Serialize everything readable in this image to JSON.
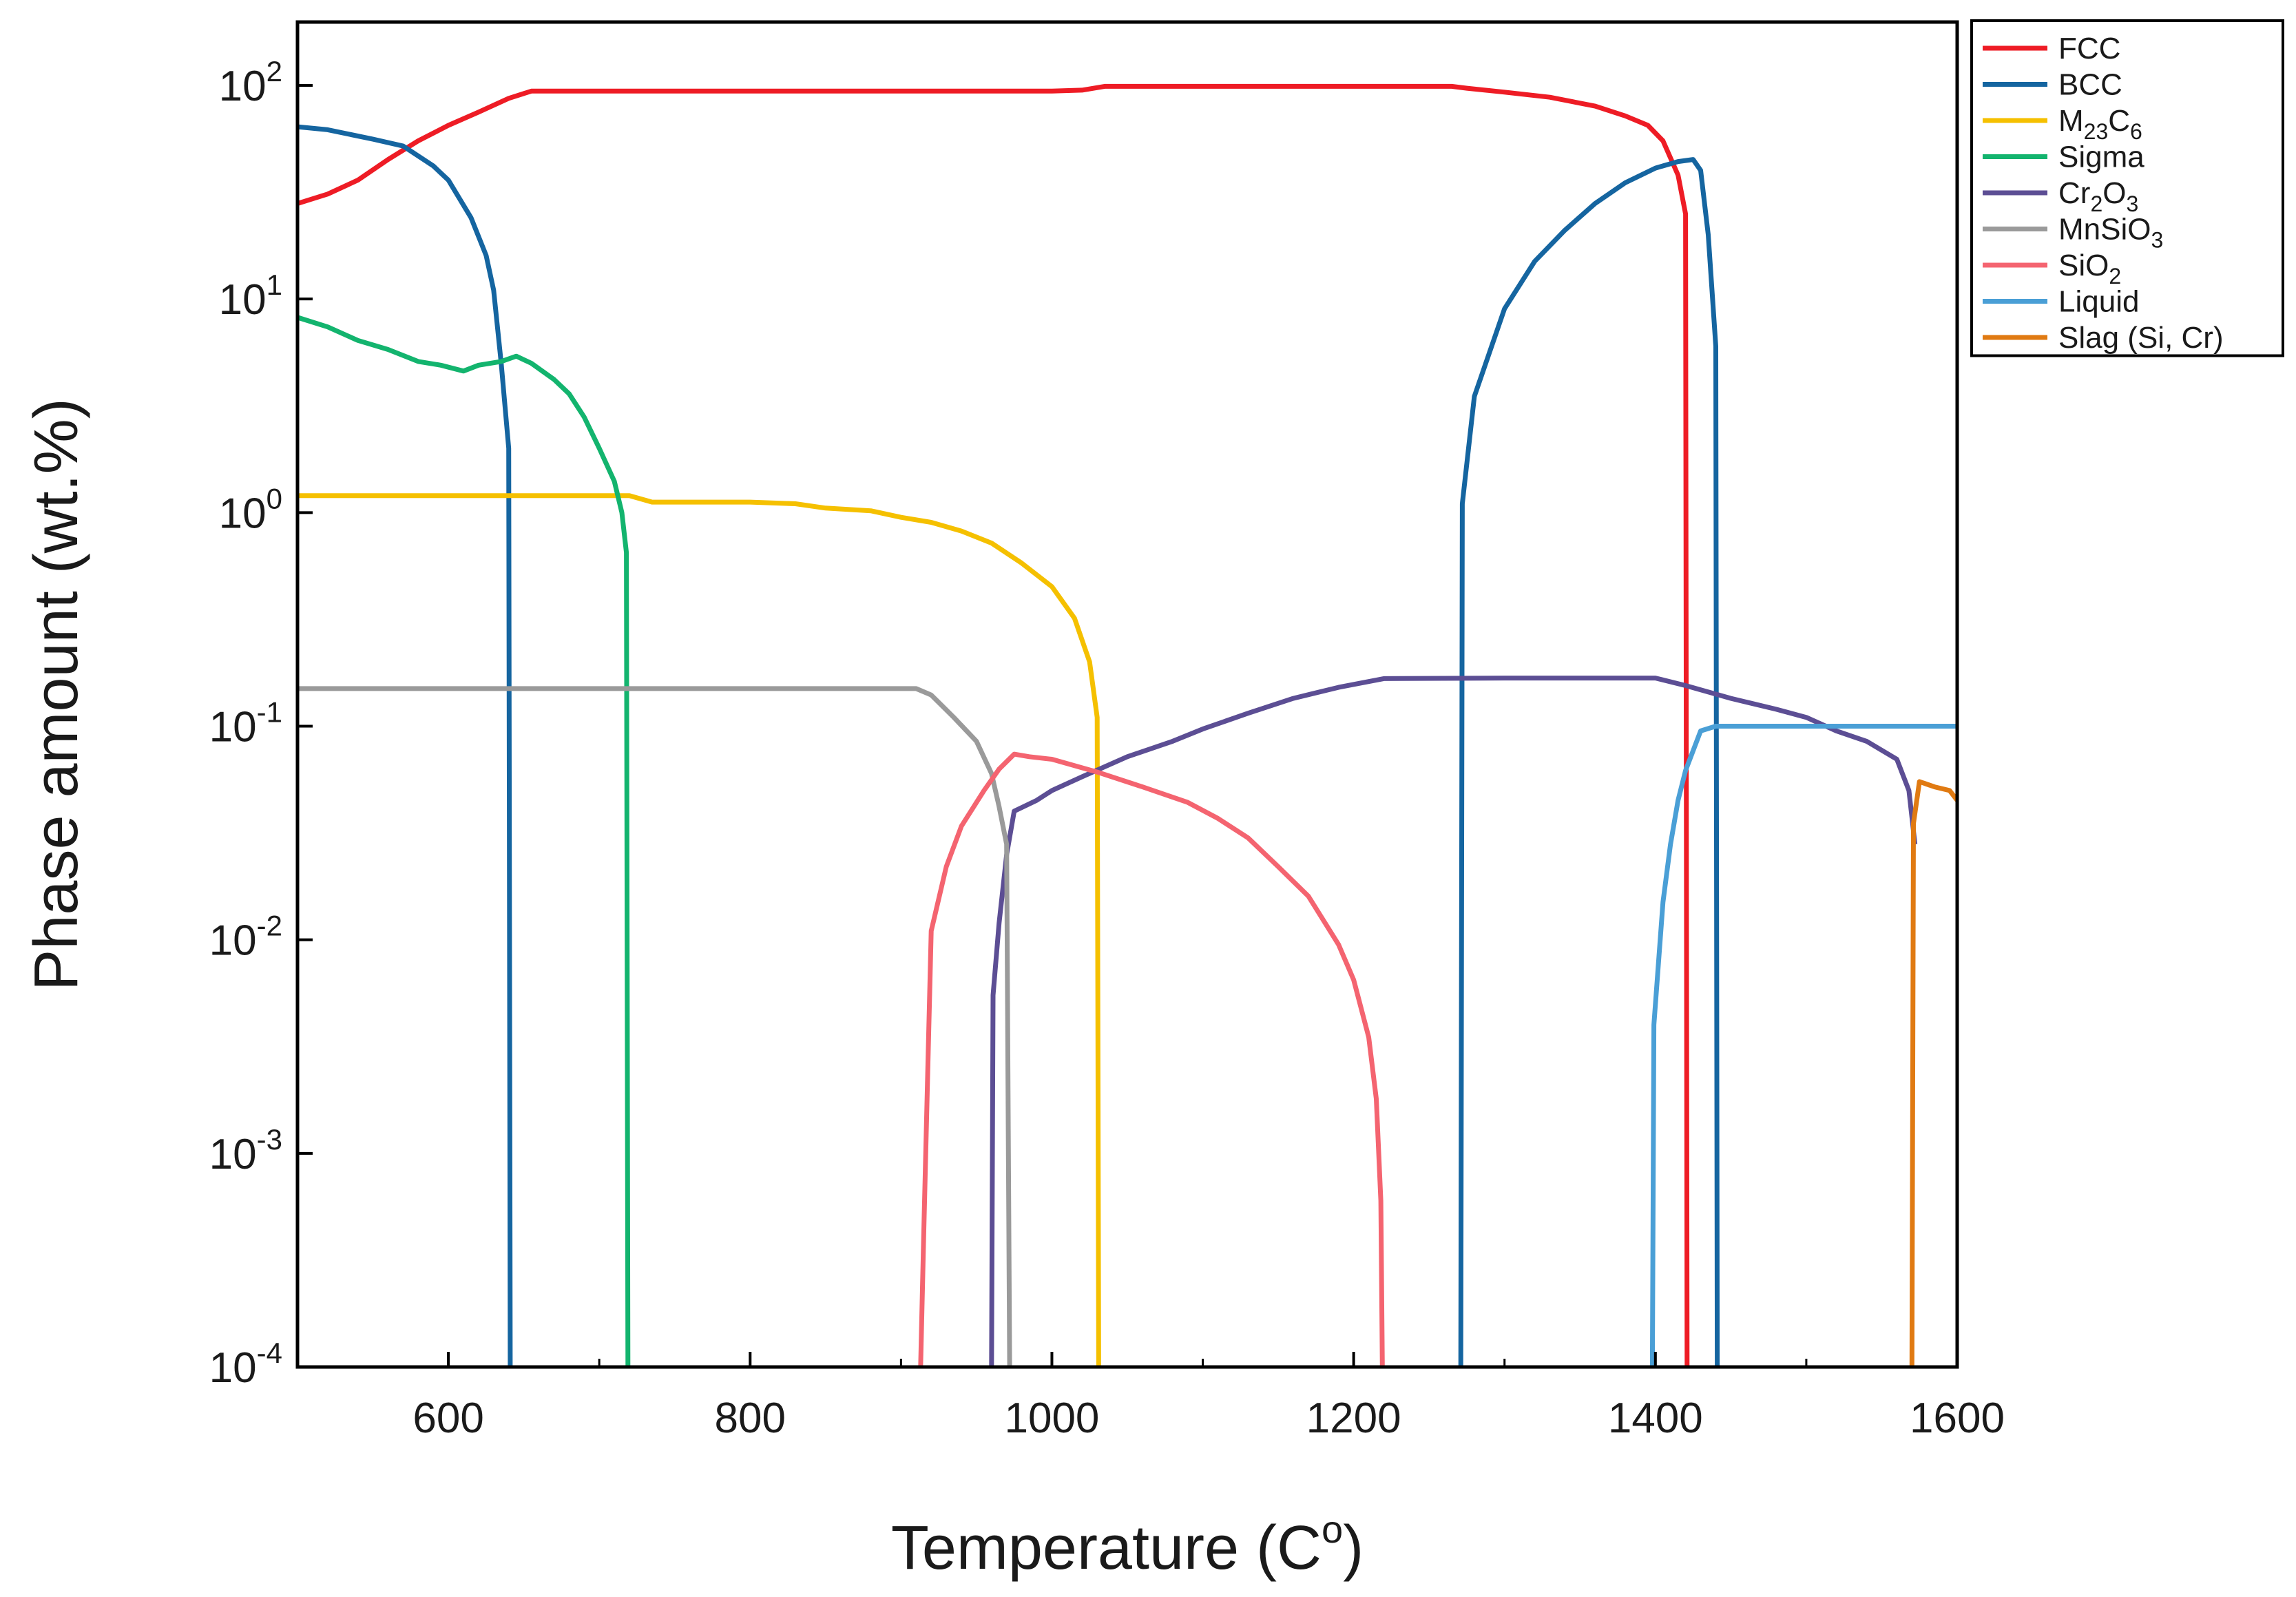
{
  "chart_data": {
    "type": "line",
    "title": "",
    "xlabel": "Temperature (C",
    "xlabel_sup": "o",
    "xlabel_close": ")",
    "ylabel": "Phase amount (wt.%)",
    "x_scale": "linear",
    "y_scale": "log",
    "xlim": [
      500,
      1600
    ],
    "ylim": [
      0.0001,
      200
    ],
    "grid": false,
    "legend_position": "top-right, outside plot",
    "x_ticks": [
      {
        "value": 600,
        "label": "600"
      },
      {
        "value": 800,
        "label": "800"
      },
      {
        "value": 1000,
        "label": "1000"
      },
      {
        "value": 1200,
        "label": "1200"
      },
      {
        "value": 1400,
        "label": "1400"
      },
      {
        "value": 1600,
        "label": "1600"
      }
    ],
    "y_ticks": [
      {
        "value": 0.0001,
        "base": "10",
        "exp": "-4"
      },
      {
        "value": 0.001,
        "base": "10",
        "exp": "-3"
      },
      {
        "value": 0.01,
        "base": "10",
        "exp": "-2"
      },
      {
        "value": 0.1,
        "base": "10",
        "exp": "-1"
      },
      {
        "value": 1,
        "base": "10",
        "exp": "0"
      },
      {
        "value": 10,
        "base": "10",
        "exp": "1"
      },
      {
        "value": 100,
        "base": "10",
        "exp": "2"
      }
    ],
    "series": [
      {
        "name": "FCC",
        "label_parts": [
          [
            "FCC",
            ""
          ]
        ],
        "color": "#ee1c25",
        "points": [
          [
            500,
            28
          ],
          [
            520,
            31
          ],
          [
            540,
            36
          ],
          [
            560,
            45
          ],
          [
            580,
            55
          ],
          [
            600,
            65
          ],
          [
            620,
            75
          ],
          [
            640,
            87
          ],
          [
            655,
            94
          ],
          [
            700,
            94
          ],
          [
            800,
            94
          ],
          [
            900,
            94
          ],
          [
            1000,
            94
          ],
          [
            1020,
            95
          ],
          [
            1035,
            99
          ],
          [
            1100,
            99
          ],
          [
            1200,
            99
          ],
          [
            1265,
            99
          ],
          [
            1275,
            97
          ],
          [
            1300,
            93
          ],
          [
            1330,
            88
          ],
          [
            1360,
            80
          ],
          [
            1380,
            72
          ],
          [
            1395,
            65
          ],
          [
            1405,
            55
          ],
          [
            1415,
            38
          ],
          [
            1420,
            25
          ],
          [
            1421,
            0.0001
          ]
        ]
      },
      {
        "name": "BCC",
        "label_parts": [
          [
            "BCC",
            ""
          ]
        ],
        "color": "#1565a0",
        "points": [
          [
            500,
            64
          ],
          [
            520,
            62
          ],
          [
            550,
            56
          ],
          [
            570,
            52
          ],
          [
            590,
            42
          ],
          [
            600,
            36
          ],
          [
            615,
            24
          ],
          [
            625,
            16
          ],
          [
            630,
            11
          ],
          [
            635,
            5
          ],
          [
            640,
            2
          ],
          [
            641,
            0.0001
          ]
        ],
        "points2": [
          [
            1271,
            0.0001
          ],
          [
            1272,
            1.1
          ],
          [
            1280,
            3.5
          ],
          [
            1300,
            9
          ],
          [
            1320,
            15
          ],
          [
            1340,
            21
          ],
          [
            1360,
            28
          ],
          [
            1380,
            35
          ],
          [
            1400,
            41
          ],
          [
            1415,
            44
          ],
          [
            1425,
            45
          ],
          [
            1430,
            40
          ],
          [
            1435,
            20
          ],
          [
            1440,
            6
          ],
          [
            1441,
            0.0001
          ]
        ]
      },
      {
        "name": "M23C6",
        "label_parts": [
          [
            "M",
            ""
          ],
          [
            "23",
            "sub"
          ],
          [
            "C",
            ""
          ],
          [
            "6",
            "sub"
          ]
        ],
        "color": "#f5c000",
        "points": [
          [
            500,
            1.2
          ],
          [
            600,
            1.2
          ],
          [
            720,
            1.2
          ],
          [
            735,
            1.12
          ],
          [
            800,
            1.12
          ],
          [
            830,
            1.1
          ],
          [
            850,
            1.05
          ],
          [
            880,
            1.02
          ],
          [
            900,
            0.95
          ],
          [
            920,
            0.9
          ],
          [
            940,
            0.82
          ],
          [
            960,
            0.72
          ],
          [
            980,
            0.58
          ],
          [
            1000,
            0.45
          ],
          [
            1015,
            0.32
          ],
          [
            1025,
            0.2
          ],
          [
            1030,
            0.11
          ],
          [
            1031,
            0.0001
          ]
        ]
      },
      {
        "name": "Sigma",
        "label_parts": [
          [
            "Sigma",
            ""
          ]
        ],
        "color": "#13b46e",
        "points": [
          [
            500,
            8.2
          ],
          [
            520,
            7.4
          ],
          [
            540,
            6.4
          ],
          [
            560,
            5.8
          ],
          [
            580,
            5.1
          ],
          [
            595,
            4.9
          ],
          [
            610,
            4.6
          ],
          [
            620,
            4.9
          ],
          [
            635,
            5.1
          ],
          [
            645,
            5.4
          ],
          [
            655,
            5.0
          ],
          [
            670,
            4.2
          ],
          [
            680,
            3.6
          ],
          [
            690,
            2.8
          ],
          [
            700,
            2.0
          ],
          [
            710,
            1.4
          ],
          [
            715,
            1.0
          ],
          [
            718,
            0.65
          ],
          [
            719,
            0.0001
          ]
        ]
      },
      {
        "name": "Cr2O3",
        "label_parts": [
          [
            "Cr",
            ""
          ],
          [
            "2",
            "sub"
          ],
          [
            "O",
            ""
          ],
          [
            "3",
            "sub"
          ]
        ],
        "color": "#5c4e94",
        "points": [
          [
            960,
            0.0001
          ],
          [
            961,
            0.0055
          ],
          [
            965,
            0.012
          ],
          [
            970,
            0.025
          ],
          [
            975,
            0.04
          ],
          [
            990,
            0.045
          ],
          [
            1000,
            0.05
          ],
          [
            1020,
            0.058
          ],
          [
            1050,
            0.072
          ],
          [
            1080,
            0.085
          ],
          [
            1100,
            0.097
          ],
          [
            1130,
            0.115
          ],
          [
            1160,
            0.135
          ],
          [
            1190,
            0.152
          ],
          [
            1220,
            0.167
          ],
          [
            1300,
            0.168
          ],
          [
            1400,
            0.168
          ],
          [
            1420,
            0.155
          ],
          [
            1450,
            0.135
          ],
          [
            1480,
            0.12
          ],
          [
            1500,
            0.11
          ],
          [
            1520,
            0.095
          ],
          [
            1540,
            0.085
          ],
          [
            1560,
            0.07
          ],
          [
            1568,
            0.05
          ],
          [
            1572,
            0.028
          ]
        ]
      },
      {
        "name": "MnSiO3",
        "label_parts": [
          [
            "MnSiO",
            ""
          ],
          [
            "3",
            "sub"
          ]
        ],
        "color": "#9a9a9a",
        "points": [
          [
            500,
            0.15
          ],
          [
            600,
            0.15
          ],
          [
            700,
            0.15
          ],
          [
            800,
            0.15
          ],
          [
            910,
            0.15
          ],
          [
            920,
            0.14
          ],
          [
            935,
            0.11
          ],
          [
            950,
            0.085
          ],
          [
            960,
            0.06
          ],
          [
            965,
            0.042
          ],
          [
            970,
            0.028
          ],
          [
            972,
            0.0001
          ]
        ]
      },
      {
        "name": "SiO2",
        "label_parts": [
          [
            "SiO",
            ""
          ],
          [
            "2",
            "sub"
          ]
        ],
        "color": "#f46470",
        "points": [
          [
            913,
            0.0001
          ],
          [
            915,
            0.0004
          ],
          [
            920,
            0.011
          ],
          [
            930,
            0.022
          ],
          [
            940,
            0.034
          ],
          [
            955,
            0.05
          ],
          [
            965,
            0.063
          ],
          [
            975,
            0.074
          ],
          [
            985,
            0.072
          ],
          [
            1000,
            0.07
          ],
          [
            1030,
            0.061
          ],
          [
            1060,
            0.052
          ],
          [
            1090,
            0.044
          ],
          [
            1110,
            0.037
          ],
          [
            1130,
            0.03
          ],
          [
            1150,
            0.022
          ],
          [
            1170,
            0.016
          ],
          [
            1190,
            0.0095
          ],
          [
            1200,
            0.0065
          ],
          [
            1210,
            0.0035
          ],
          [
            1215,
            0.0018
          ],
          [
            1218,
            0.0006
          ],
          [
            1219,
            0.0001
          ]
        ]
      },
      {
        "name": "Liquid",
        "label_parts": [
          [
            "Liquid",
            ""
          ]
        ],
        "color": "#4a9fd6",
        "points": [
          [
            1398,
            0.0001
          ],
          [
            1399,
            0.004
          ],
          [
            1405,
            0.015
          ],
          [
            1410,
            0.028
          ],
          [
            1415,
            0.045
          ],
          [
            1420,
            0.062
          ],
          [
            1430,
            0.095
          ],
          [
            1440,
            0.1
          ],
          [
            1500,
            0.1
          ],
          [
            1600,
            0.1
          ]
        ]
      },
      {
        "name": "Slag (Si, Cr)",
        "label_parts": [
          [
            "Slag (Si, Cr)",
            ""
          ]
        ],
        "color": "#e07a12",
        "points": [
          [
            1570,
            0.0001
          ],
          [
            1571,
            0.035
          ],
          [
            1575,
            0.055
          ],
          [
            1585,
            0.052
          ],
          [
            1595,
            0.05
          ],
          [
            1600,
            0.045
          ]
        ]
      }
    ]
  }
}
